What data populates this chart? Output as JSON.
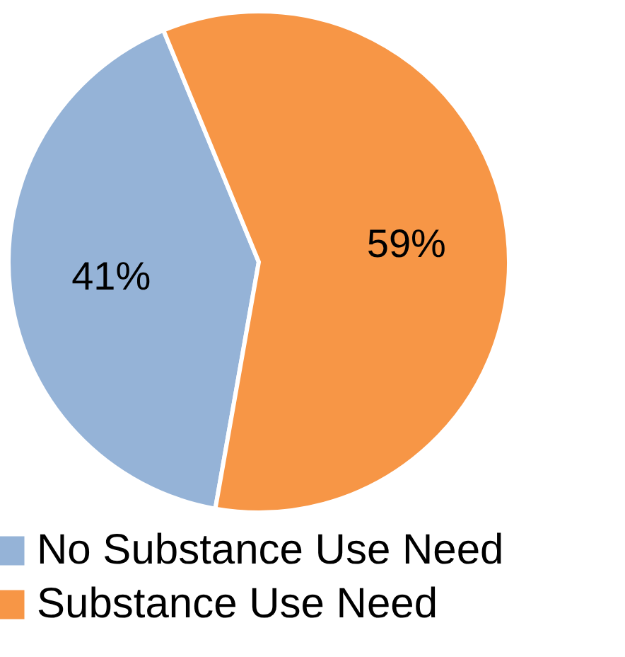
{
  "chart_data": {
    "type": "pie",
    "categories": [
      "No Substance Use Need",
      "Substance Use Need"
    ],
    "values": [
      41,
      59
    ],
    "colors": [
      "#95b3d7",
      "#f79646"
    ],
    "value_labels": [
      "41%",
      "59%"
    ],
    "legend": "bottom"
  }
}
